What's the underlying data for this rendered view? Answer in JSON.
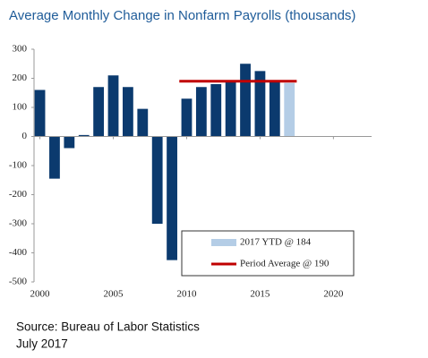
{
  "chart_data": {
    "type": "bar",
    "title": "Average Monthly Change in Nonfarm Payrolls (thousands)",
    "x": [
      2000,
      2001,
      2002,
      2003,
      2004,
      2005,
      2006,
      2007,
      2008,
      2009,
      2010,
      2011,
      2012,
      2013,
      2014,
      2015,
      2016,
      2017
    ],
    "values": [
      160,
      -145,
      -40,
      5,
      170,
      210,
      170,
      95,
      -300,
      -425,
      130,
      170,
      180,
      190,
      250,
      225,
      190,
      184
    ],
    "colors": [
      "#0b3a6e",
      "#0b3a6e",
      "#0b3a6e",
      "#0b3a6e",
      "#0b3a6e",
      "#0b3a6e",
      "#0b3a6e",
      "#0b3a6e",
      "#0b3a6e",
      "#0b3a6e",
      "#0b3a6e",
      "#0b3a6e",
      "#0b3a6e",
      "#0b3a6e",
      "#0b3a6e",
      "#0b3a6e",
      "#0b3a6e",
      "#b4cde6"
    ],
    "reference_line": {
      "value": 190,
      "x": [
        2010,
        2017
      ],
      "color": "#c00000"
    },
    "legend": [
      {
        "label": "2017 YTD @ 184",
        "color": "#b4cde6"
      },
      {
        "label": "Period Average @ 190",
        "color": "#c00000"
      }
    ],
    "xlim": [
      1999.6,
      2022.6
    ],
    "xticks": [
      2000,
      2005,
      2010,
      2015,
      2020
    ],
    "ylim": [
      -500,
      300
    ],
    "yticks": [
      -500,
      -400,
      -300,
      -200,
      -100,
      0,
      100,
      200,
      300
    ]
  },
  "source": "Source: Bureau of Labor Statistics",
  "date": "July 2017"
}
